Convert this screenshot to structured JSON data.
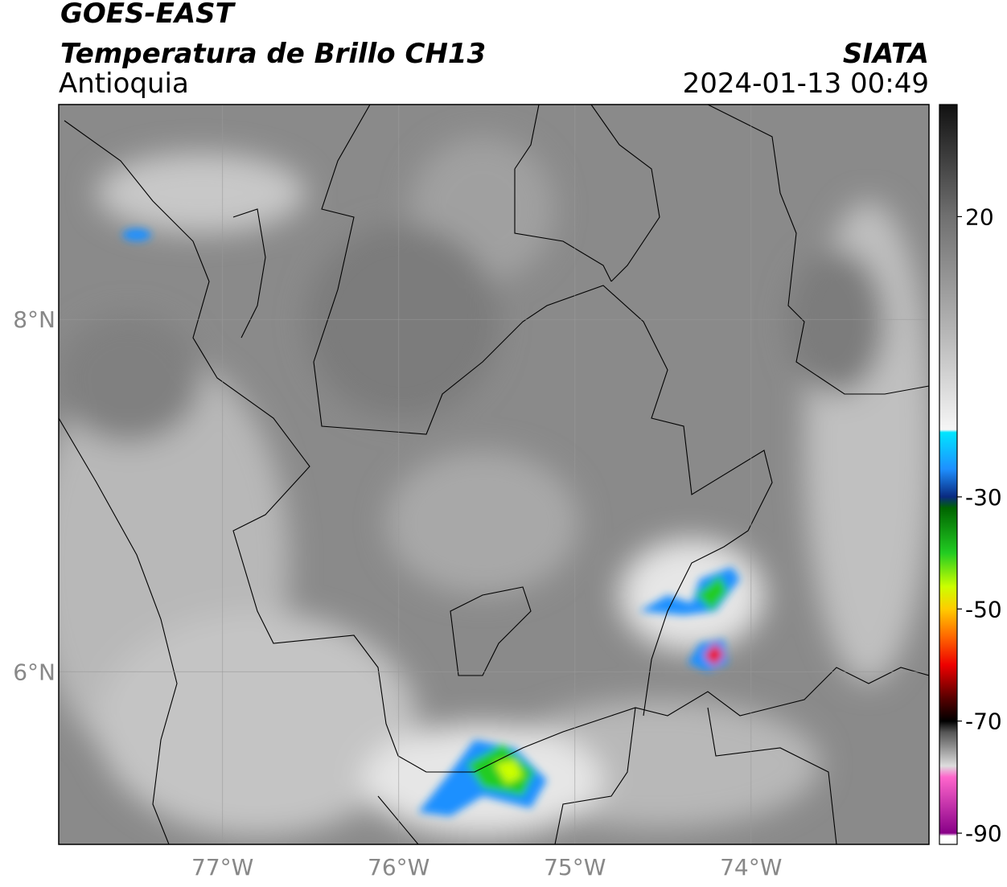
{
  "header": {
    "title": "GOES-EAST",
    "subtitle": "Temperatura de Brillo CH13",
    "region": "Antioquia",
    "source": "SIATA",
    "datetime": "2024-01-13 00:49"
  },
  "chart_data": {
    "type": "map",
    "xlim": [
      -77.93,
      -72.99
    ],
    "ylim": [
      5.02,
      9.22
    ],
    "xticks": [
      {
        "value": -77,
        "label": "77°W"
      },
      {
        "value": -76,
        "label": "76°W"
      },
      {
        "value": -75,
        "label": "75°W"
      },
      {
        "value": -74,
        "label": "74°W"
      }
    ],
    "yticks": [
      {
        "value": 8,
        "label": "8°N"
      },
      {
        "value": 6,
        "label": "6°N"
      }
    ],
    "grid": true,
    "colorbar": {
      "lim": [
        -92,
        40
      ],
      "ticks": [
        20,
        -30,
        -50,
        -70,
        -90
      ],
      "stops": [
        {
          "value": 40,
          "color": "#111111"
        },
        {
          "value": 20,
          "color": "#707070"
        },
        {
          "value": 0,
          "color": "#b4b4b4"
        },
        {
          "value": -18,
          "color": "#f6f6f6"
        },
        {
          "value": -18.5,
          "color": "#00e5ff"
        },
        {
          "value": -25,
          "color": "#1e90ff"
        },
        {
          "value": -30,
          "color": "#0a2a80"
        },
        {
          "value": -32,
          "color": "#006400"
        },
        {
          "value": -40,
          "color": "#22cc22"
        },
        {
          "value": -46,
          "color": "#ccff00"
        },
        {
          "value": -50,
          "color": "#ffcc00"
        },
        {
          "value": -55,
          "color": "#ff6600"
        },
        {
          "value": -60,
          "color": "#ee0000"
        },
        {
          "value": -66,
          "color": "#550000"
        },
        {
          "value": -70,
          "color": "#000000"
        },
        {
          "value": -72,
          "color": "#555555"
        },
        {
          "value": -78,
          "color": "#dddddd"
        },
        {
          "value": -80,
          "color": "#ff66cc"
        },
        {
          "value": -90,
          "color": "#880088"
        },
        {
          "value": -90.5,
          "color": "#ffffff"
        },
        {
          "value": -92,
          "color": "#ffffff"
        }
      ]
    }
  }
}
